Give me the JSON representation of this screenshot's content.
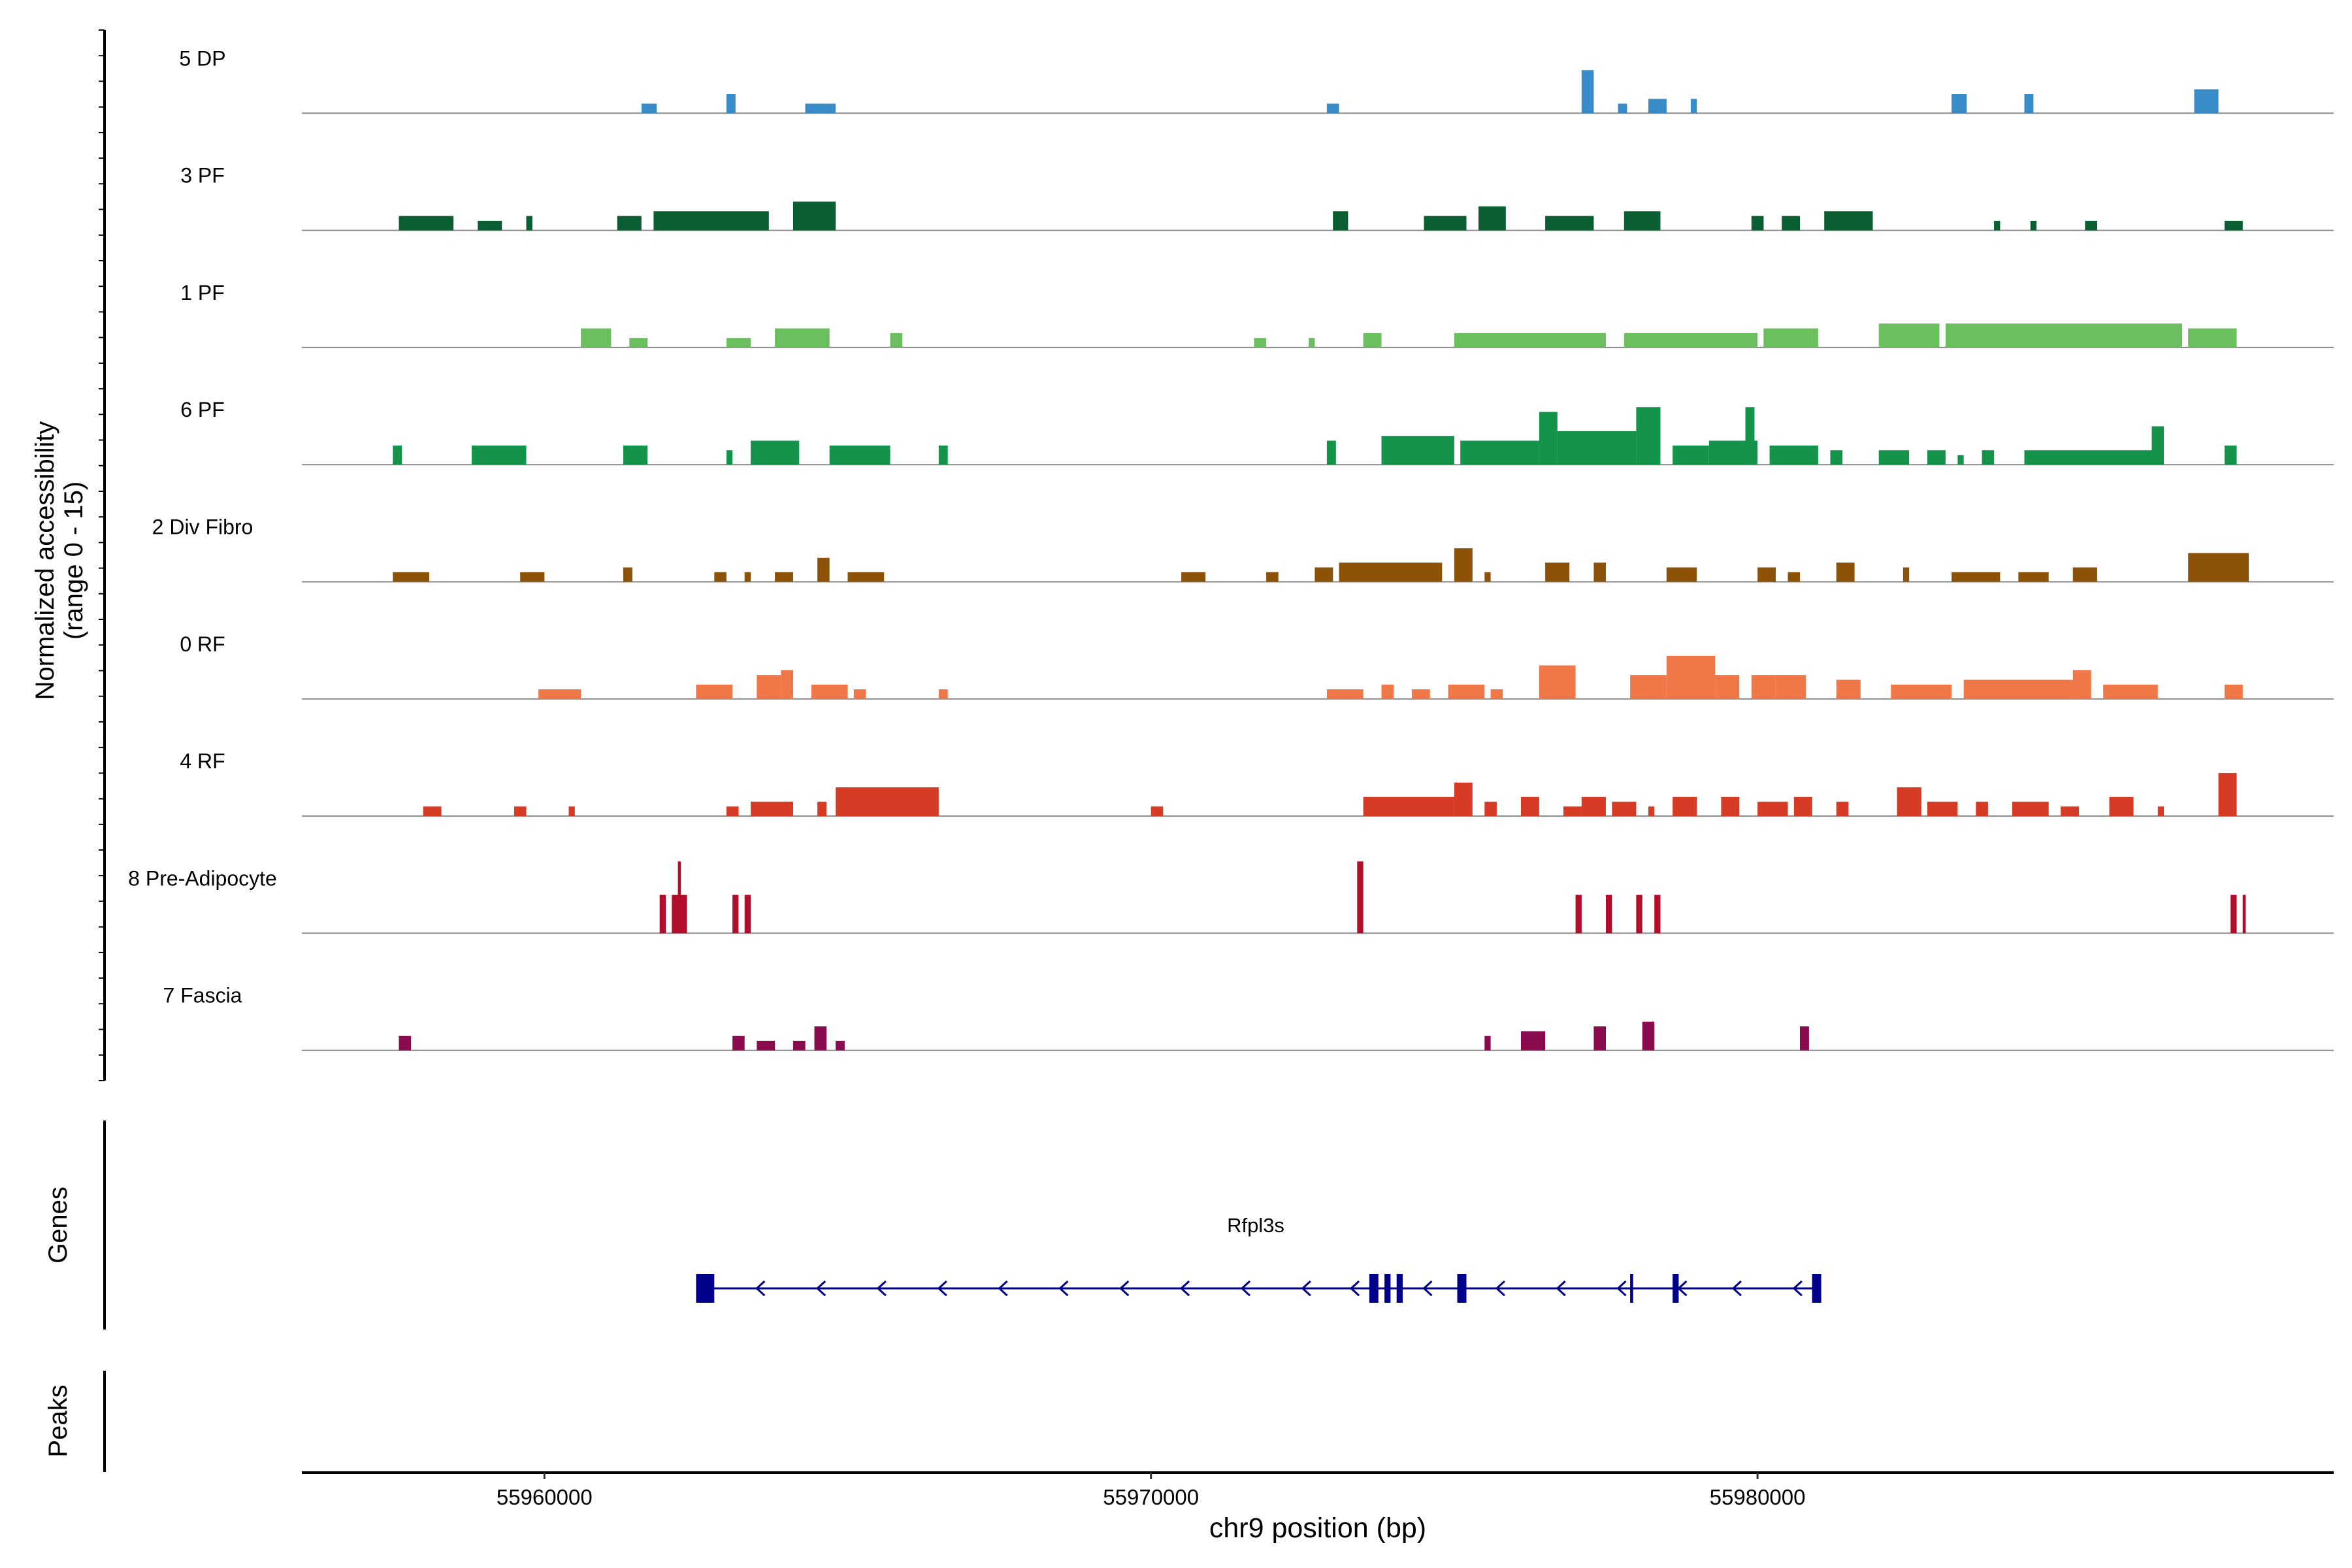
{
  "chart_data": {
    "type": "coverage",
    "y_axis_label_line1": "Normalized accessibility",
    "y_axis_label_line2": "(range 0 - 15)",
    "y_range": [
      0,
      15
    ],
    "x_label": "chr9 position (bp)",
    "x_range": [
      55956000,
      55989500
    ],
    "x_ticks": [
      55960000,
      55970000,
      55980000
    ],
    "x_tick_labels": [
      "55960000",
      "55970000",
      "55980000"
    ],
    "tracks": [
      {
        "name": "5 DP",
        "color": "#3a8cc8",
        "peaks": [
          [
            55961600,
            55961850,
            2
          ],
          [
            55963000,
            55963150,
            4
          ],
          [
            55964300,
            55964800,
            2
          ],
          [
            55972900,
            55973100,
            2
          ],
          [
            55977100,
            55977300,
            9
          ],
          [
            55977700,
            55977850,
            2
          ],
          [
            55978200,
            55978500,
            3
          ],
          [
            55978900,
            55979000,
            3
          ],
          [
            55983200,
            55983450,
            4
          ],
          [
            55984400,
            55984550,
            4
          ],
          [
            55987200,
            55987600,
            5
          ]
        ]
      },
      {
        "name": "3 PF",
        "color": "#0a5e31",
        "peaks": [
          [
            55957600,
            55958500,
            3
          ],
          [
            55958900,
            55959300,
            2
          ],
          [
            55959700,
            55959800,
            3
          ],
          [
            55961200,
            55961600,
            3
          ],
          [
            55961800,
            55963700,
            4
          ],
          [
            55964100,
            55964800,
            6
          ],
          [
            55973000,
            55973250,
            4
          ],
          [
            55974500,
            55975200,
            3
          ],
          [
            55975400,
            55975850,
            5
          ],
          [
            55976500,
            55977300,
            3
          ],
          [
            55977800,
            55978400,
            4
          ],
          [
            55979900,
            55980100,
            3
          ],
          [
            55980400,
            55980700,
            3
          ],
          [
            55981100,
            55981900,
            4
          ],
          [
            55983900,
            55984000,
            2
          ],
          [
            55984500,
            55984600,
            2
          ],
          [
            55985400,
            55985600,
            2
          ],
          [
            55987700,
            55988000,
            2
          ]
        ]
      },
      {
        "name": "1 PF",
        "color": "#6cbf5f",
        "peaks": [
          [
            55960600,
            55961100,
            4
          ],
          [
            55961400,
            55961700,
            2
          ],
          [
            55963000,
            55963400,
            2
          ],
          [
            55963800,
            55964700,
            4
          ],
          [
            55965700,
            55965900,
            3
          ],
          [
            55971700,
            55971900,
            2
          ],
          [
            55972600,
            55972700,
            2
          ],
          [
            55973500,
            55973800,
            3
          ],
          [
            55975000,
            55977500,
            3
          ],
          [
            55977800,
            55980000,
            3
          ],
          [
            55980100,
            55981000,
            4
          ],
          [
            55982000,
            55983000,
            5
          ],
          [
            55983100,
            55987000,
            5
          ],
          [
            55987100,
            55987900,
            4
          ]
        ]
      },
      {
        "name": "6 PF",
        "color": "#14934a",
        "peaks": [
          [
            55957500,
            55957650,
            4
          ],
          [
            55958800,
            55959700,
            4
          ],
          [
            55961300,
            55961700,
            4
          ],
          [
            55963000,
            55963100,
            3
          ],
          [
            55963400,
            55964200,
            5
          ],
          [
            55964700,
            55965700,
            4
          ],
          [
            55966500,
            55966650,
            4
          ],
          [
            55972900,
            55973050,
            5
          ],
          [
            55973800,
            55975000,
            6
          ],
          [
            55975100,
            55976400,
            5
          ],
          [
            55976400,
            55976700,
            11
          ],
          [
            55976700,
            55978000,
            7
          ],
          [
            55978000,
            55978400,
            12
          ],
          [
            55978600,
            55979200,
            4
          ],
          [
            55979200,
            55980000,
            5
          ],
          [
            55979800,
            55979950,
            12
          ],
          [
            55980200,
            55981000,
            4
          ],
          [
            55981200,
            55981400,
            3
          ],
          [
            55982000,
            55982500,
            3
          ],
          [
            55982800,
            55983100,
            3
          ],
          [
            55983300,
            55983400,
            2
          ],
          [
            55983700,
            55983900,
            3
          ],
          [
            55984400,
            55986500,
            3
          ],
          [
            55986500,
            55986700,
            8
          ],
          [
            55987700,
            55987900,
            4
          ]
        ]
      },
      {
        "name": "2 Div Fibro",
        "color": "#8c5208",
        "peaks": [
          [
            55957500,
            55958100,
            2
          ],
          [
            55959600,
            55960000,
            2
          ],
          [
            55961300,
            55961450,
            3
          ],
          [
            55962800,
            55963000,
            2
          ],
          [
            55963300,
            55963400,
            2
          ],
          [
            55963800,
            55964100,
            2
          ],
          [
            55964500,
            55964700,
            5
          ],
          [
            55965000,
            55965600,
            2
          ],
          [
            55970500,
            55970900,
            2
          ],
          [
            55971900,
            55972100,
            2
          ],
          [
            55972700,
            55973000,
            3
          ],
          [
            55973100,
            55974800,
            4
          ],
          [
            55975000,
            55975300,
            7
          ],
          [
            55975500,
            55975600,
            2
          ],
          [
            55976500,
            55976900,
            4
          ],
          [
            55977300,
            55977500,
            4
          ],
          [
            55978500,
            55979000,
            3
          ],
          [
            55980000,
            55980300,
            3
          ],
          [
            55980500,
            55980700,
            2
          ],
          [
            55981300,
            55981600,
            4
          ],
          [
            55982400,
            55982500,
            3
          ],
          [
            55983200,
            55984000,
            2
          ],
          [
            55984300,
            55984800,
            2
          ],
          [
            55985200,
            55985600,
            3
          ],
          [
            55987100,
            55988100,
            6
          ]
        ]
      },
      {
        "name": "0 RF",
        "color": "#f07848",
        "peaks": [
          [
            55959900,
            55960600,
            2
          ],
          [
            55962500,
            55963100,
            3
          ],
          [
            55963500,
            55963900,
            5
          ],
          [
            55963900,
            55964100,
            6
          ],
          [
            55964400,
            55965000,
            3
          ],
          [
            55965100,
            55965300,
            2
          ],
          [
            55966500,
            55966650,
            2
          ],
          [
            55972900,
            55973500,
            2
          ],
          [
            55973800,
            55974000,
            3
          ],
          [
            55974300,
            55974600,
            2
          ],
          [
            55974900,
            55975500,
            3
          ],
          [
            55975600,
            55975800,
            2
          ],
          [
            55976400,
            55977000,
            7
          ],
          [
            55977900,
            55978500,
            5
          ],
          [
            55978500,
            55979300,
            9
          ],
          [
            55979300,
            55979700,
            5
          ],
          [
            55979900,
            55980300,
            5
          ],
          [
            55980300,
            55980800,
            5
          ],
          [
            55981300,
            55981700,
            4
          ],
          [
            55982200,
            55983200,
            3
          ],
          [
            55983400,
            55985300,
            4
          ],
          [
            55985200,
            55985500,
            6
          ],
          [
            55985700,
            55986600,
            3
          ],
          [
            55987700,
            55988000,
            3
          ]
        ]
      },
      {
        "name": "4 RF",
        "color": "#d63b25",
        "peaks": [
          [
            55958000,
            55958300,
            2
          ],
          [
            55959500,
            55959700,
            2
          ],
          [
            55960400,
            55960500,
            2
          ],
          [
            55963000,
            55963200,
            2
          ],
          [
            55963400,
            55964100,
            3
          ],
          [
            55964500,
            55964650,
            3
          ],
          [
            55964800,
            55966500,
            6
          ],
          [
            55970000,
            55970200,
            2
          ],
          [
            55973500,
            55975000,
            4
          ],
          [
            55975000,
            55975300,
            7
          ],
          [
            55975500,
            55975700,
            3
          ],
          [
            55976100,
            55976400,
            4
          ],
          [
            55976800,
            55977100,
            2
          ],
          [
            55977100,
            55977500,
            4
          ],
          [
            55977600,
            55978000,
            3
          ],
          [
            55978200,
            55978300,
            2
          ],
          [
            55978600,
            55979000,
            4
          ],
          [
            55979400,
            55979700,
            4
          ],
          [
            55980000,
            55980500,
            3
          ],
          [
            55980600,
            55980900,
            4
          ],
          [
            55981300,
            55981500,
            3
          ],
          [
            55982300,
            55982700,
            6
          ],
          [
            55982800,
            55983300,
            3
          ],
          [
            55983600,
            55983800,
            3
          ],
          [
            55984200,
            55984800,
            3
          ],
          [
            55985000,
            55985300,
            2
          ],
          [
            55985800,
            55986200,
            4
          ],
          [
            55986600,
            55986700,
            2
          ],
          [
            55987600,
            55987900,
            9
          ]
        ]
      },
      {
        "name": "8 Pre-Adipocyte",
        "color": "#b00e2a",
        "peaks": [
          [
            55961900,
            55962000,
            8
          ],
          [
            55962100,
            55962350,
            8
          ],
          [
            55962200,
            55962250,
            15
          ],
          [
            55963100,
            55963200,
            8
          ],
          [
            55963300,
            55963400,
            8
          ],
          [
            55973400,
            55973500,
            15
          ],
          [
            55977000,
            55977100,
            8
          ],
          [
            55977500,
            55977600,
            8
          ],
          [
            55978000,
            55978100,
            8
          ],
          [
            55978300,
            55978400,
            8
          ],
          [
            55987800,
            55987900,
            8
          ],
          [
            55988000,
            55988050,
            8
          ]
        ]
      },
      {
        "name": "7 Fascia",
        "color": "#8a0c4f",
        "peaks": [
          [
            55957600,
            55957800,
            3
          ],
          [
            55963100,
            55963300,
            3
          ],
          [
            55963500,
            55963800,
            2
          ],
          [
            55964100,
            55964300,
            2
          ],
          [
            55964450,
            55964650,
            5
          ],
          [
            55964800,
            55964950,
            2
          ],
          [
            55975500,
            55975600,
            3
          ],
          [
            55976100,
            55976500,
            4
          ],
          [
            55977300,
            55977500,
            5
          ],
          [
            55978100,
            55978300,
            6
          ],
          [
            55980700,
            55980850,
            5
          ]
        ]
      }
    ]
  },
  "genes": {
    "panel_label": "Genes",
    "gene_name": "Rfpl3s",
    "color": "#00008b",
    "start": 55962500,
    "end": 55981000,
    "exons": [
      [
        55962500,
        55962800,
        "thick"
      ],
      [
        55973600,
        55973750,
        "thin"
      ],
      [
        55973850,
        55973950,
        "thin"
      ],
      [
        55974050,
        55974150,
        "thin"
      ],
      [
        55975050,
        55975200,
        "thick"
      ],
      [
        55977900,
        55977950,
        "hair"
      ],
      [
        55978600,
        55978700,
        "thin"
      ],
      [
        55980900,
        55981000,
        "thick"
      ]
    ],
    "arrow_positions": [
      55963500,
      55964500,
      55965500,
      55966500,
      55967500,
      55968500,
      55969500,
      55970500,
      55971500,
      55972500,
      55973300,
      55974500,
      55975700,
      55976700,
      55977700,
      55978700,
      55979600,
      55980600
    ]
  },
  "peaks_panel": {
    "panel_label": "Peaks"
  }
}
